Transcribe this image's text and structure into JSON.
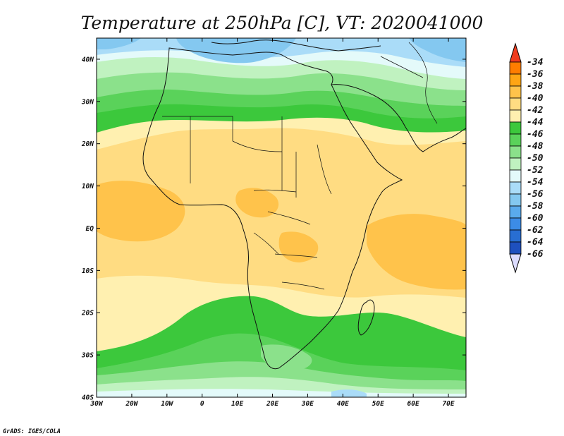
{
  "title": "Temperature at 250hPa [C], VT: 2020041000",
  "credit": "GrADS: IGES/COLA",
  "map": {
    "lat_labels": [
      "40N",
      "30N",
      "20N",
      "10N",
      "EQ",
      "10S",
      "20S",
      "30S",
      "40S"
    ],
    "lon_labels": [
      "30W",
      "20W",
      "10W",
      "0",
      "10E",
      "20E",
      "30E",
      "40E",
      "50E",
      "60E",
      "70E"
    ],
    "lon_range": [
      -30,
      75
    ],
    "lat_range": [
      -40,
      45
    ]
  },
  "colorbar": {
    "labels": [
      "-34",
      "-36",
      "-38",
      "-40",
      "-42",
      "-44",
      "-46",
      "-48",
      "-50",
      "-52",
      "-54",
      "-56",
      "-58",
      "-60",
      "-62",
      "-64",
      "-66"
    ],
    "colors": [
      "#f03c1e",
      "#ff7d00",
      "#ffa514",
      "#ffc34b",
      "#ffdc82",
      "#fff0b0",
      "#3cc83c",
      "#5ad25a",
      "#8be18b",
      "#c0f2c0",
      "#e4fafa",
      "#aadcf8",
      "#84c8f0",
      "#5aaaec",
      "#3c8ce6",
      "#286ed2",
      "#1e50be",
      "#0a1e78",
      "#dcdcff"
    ]
  },
  "colors": {
    "frame": "#000000",
    "coast": "#111111"
  }
}
